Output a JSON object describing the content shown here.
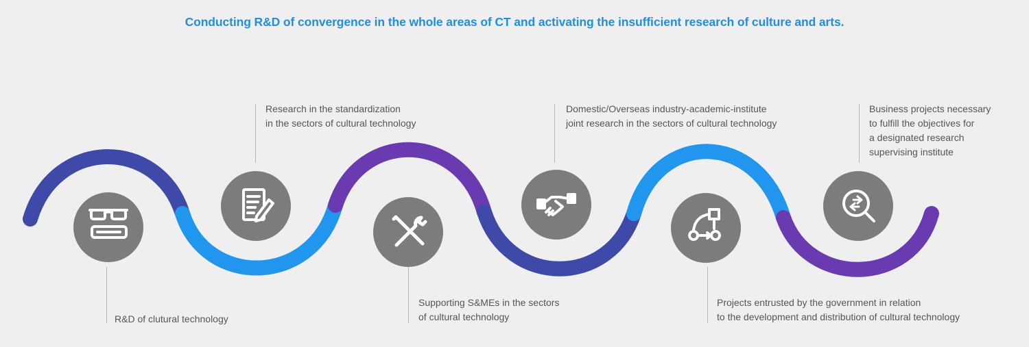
{
  "headline": "Conducting R&D of convergence in the whole areas of CT and activating the insufficient research of culture and arts.",
  "colors": {
    "headline": "#1e8fe3",
    "navy": "#3f4aa8",
    "sky": "#2196ee",
    "purple": "#6a3bb0",
    "circle": "#7c7c7c"
  },
  "items": [
    {
      "icon": "glasses-book-icon",
      "lines": [
        "R&D of clutural technology"
      ]
    },
    {
      "icon": "document-pencil-icon",
      "lines": [
        "Research in the standardization",
        "in the sectors of cultural technology"
      ]
    },
    {
      "icon": "wrench-screwdriver-icon",
      "lines": [
        "Supporting S&MEs in the sectors",
        "of cultural technology"
      ]
    },
    {
      "icon": "handshake-icon",
      "lines": [
        "Domestic/Overseas industry-academic-institute",
        "joint research in the sectors of cultural technology"
      ]
    },
    {
      "icon": "workflow-diagram-icon",
      "lines": [
        "Projects entrusted by the government in relation",
        "to the development and distribution of cultural technology"
      ]
    },
    {
      "icon": "search-arrows-icon",
      "lines": [
        "Business projects necessary",
        "to fulfill the objectives for",
        "a designated research",
        "supervising institute"
      ]
    }
  ]
}
